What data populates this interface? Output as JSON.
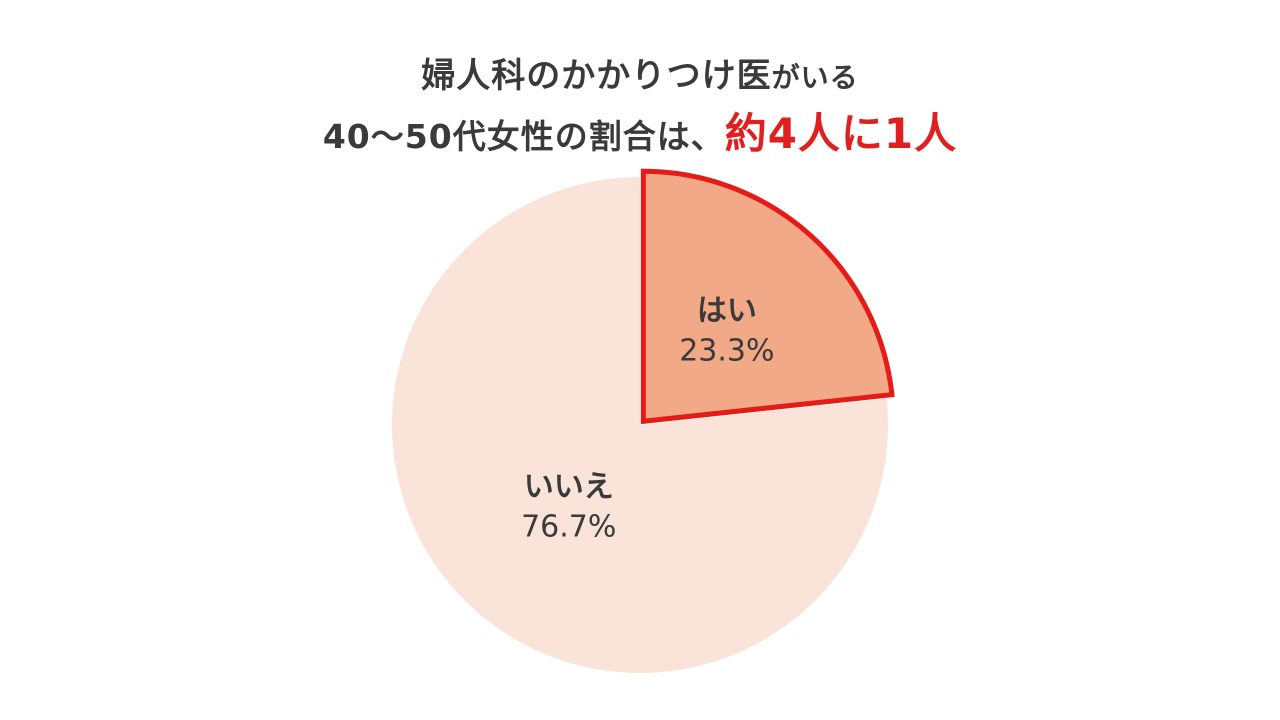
{
  "title": {
    "line1_main": "婦人科のかかりつけ医",
    "line1_suffix": "がいる",
    "line2_prefix": "40～50代女性の割合は、",
    "line2_highlight": "約4人に1人"
  },
  "colors": {
    "highlight_text": "#e02020",
    "slice_yes_fill": "#f2a987",
    "slice_yes_stroke": "#e41b17",
    "slice_no_fill": "#fae3d8"
  },
  "chart_data": {
    "type": "pie",
    "start_angle": "12 o'clock, clockwise",
    "slices": [
      {
        "label": "はい",
        "value": 23.3,
        "value_label": "23.3%",
        "color": "#f2a987",
        "highlighted": true
      },
      {
        "label": "いいえ",
        "value": 76.7,
        "value_label": "76.7%",
        "color": "#fae3d8",
        "highlighted": false
      }
    ]
  }
}
